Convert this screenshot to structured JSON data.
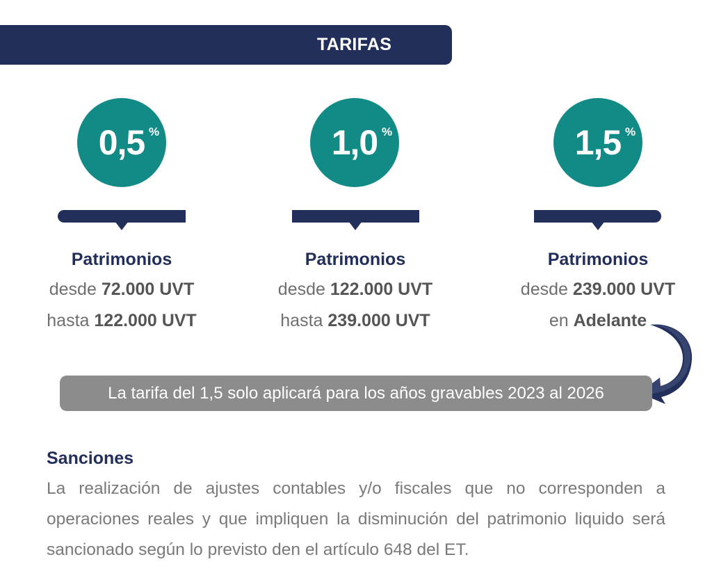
{
  "banner": {
    "title": "TARIFAS"
  },
  "rates": [
    {
      "value": "0,5",
      "percent": "%",
      "title": "Patrimonios",
      "line1_prefix": "desde ",
      "line1_value": "72.000 UVT",
      "line2_prefix": "hasta ",
      "line2_value": "122.000 UVT"
    },
    {
      "value": "1,0",
      "percent": "%",
      "title": "Patrimonios",
      "line1_prefix": "desde ",
      "line1_value": "122.000 UVT",
      "line2_prefix": "hasta ",
      "line2_value": "239.000 UVT"
    },
    {
      "value": "1,5",
      "percent": "%",
      "title": "Patrimonios",
      "line1_prefix": "desde ",
      "line1_value": "239.000 UVT",
      "line2_prefix": "en ",
      "line2_value": "Adelante"
    }
  ],
  "note": "La tarifa del 1,5 solo aplicará para los años gravables 2023 al 2026",
  "sanciones": {
    "title": "Sanciones",
    "body": "La realización de ajustes contables y/o fiscales que no corresponden a operaciones reales y que impliquen la disminución del patrimonio liquido será sancionado según lo previsto den el artículo 648 del ET."
  },
  "colors": {
    "navy": "#232f5b",
    "teal": "#128b86",
    "grey_pill": "#8c8c8c",
    "text_grey": "#7a7a7a"
  }
}
